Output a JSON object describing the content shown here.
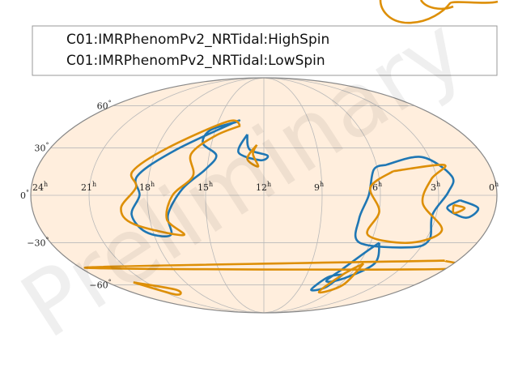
{
  "chart_data": {
    "type": "skymap-contour",
    "projection": "mollweide",
    "watermark": "Preliminary",
    "colors": {
      "background_fill": "#ffeedd",
      "grid": "#b9b9b9",
      "outline": "#888888",
      "series": [
        "#1f77b4",
        "#dd8f07"
      ]
    },
    "legend": {
      "placement": "top",
      "entries": [
        "C01:IMRPhenomPv2_NRTidal:HighSpin",
        "C01:IMRPhenomPv2_NRTidal:LowSpin"
      ]
    },
    "ra_ticks": [
      {
        "hour": 24,
        "label": "24",
        "unit": "h"
      },
      {
        "hour": 21,
        "label": "21",
        "unit": "h"
      },
      {
        "hour": 18,
        "label": "18",
        "unit": "h"
      },
      {
        "hour": 15,
        "label": "15",
        "unit": "h"
      },
      {
        "hour": 12,
        "label": "12",
        "unit": "h"
      },
      {
        "hour": 9,
        "label": "9",
        "unit": "h"
      },
      {
        "hour": 6,
        "label": "6",
        "unit": "h"
      },
      {
        "hour": 3,
        "label": "3",
        "unit": "h"
      },
      {
        "hour": 0,
        "label": "0",
        "unit": "h"
      }
    ],
    "dec_ticks": [
      {
        "deg": 60,
        "label": "60",
        "unit": "°"
      },
      {
        "deg": 30,
        "label": "30",
        "unit": "°"
      },
      {
        "deg": 0,
        "label": "0",
        "unit": "°"
      },
      {
        "deg": -30,
        "label": "−30",
        "unit": "°"
      },
      {
        "deg": -60,
        "label": "−60",
        "unit": "°"
      }
    ],
    "series": [
      {
        "name": "C01:IMRPhenomPv2_NRTidal:HighSpin",
        "contours": [
          [
            [
              13.7,
              48
            ],
            [
              15.3,
              42
            ],
            [
              15.5,
              33
            ],
            [
              14.6,
              25
            ],
            [
              15.1,
              16
            ],
            [
              16.2,
              4
            ],
            [
              17.0,
              -12
            ],
            [
              17.1,
              -25
            ],
            [
              18.4,
              -23
            ],
            [
              18.9,
              -12
            ],
            [
              18.4,
              0
            ],
            [
              18.6,
              12
            ],
            [
              17.0,
              28
            ],
            [
              14.0,
              47
            ],
            [
              13.7,
              48
            ]
          ],
          [
            [
              13.0,
              39
            ],
            [
              13.4,
              27
            ],
            [
              12.2,
              22
            ],
            [
              11.8,
              25
            ],
            [
              12.8,
              29
            ],
            [
              13.0,
              39
            ]
          ],
          [
            [
              5.5,
              19
            ],
            [
              6.2,
              16
            ],
            [
              6.6,
              0
            ],
            [
              7.0,
              -15
            ],
            [
              6.6,
              -30
            ],
            [
              3.6,
              -33
            ],
            [
              2.8,
              -28
            ],
            [
              3.2,
              -12
            ],
            [
              2.5,
              2
            ],
            [
              2.2,
              12
            ],
            [
              3.4,
              24
            ],
            [
              5.5,
              19
            ]
          ],
          [
            [
              1.9,
              -3
            ],
            [
              0.9,
              -8
            ],
            [
              1.4,
              -14
            ],
            [
              2.5,
              -8
            ],
            [
              1.9,
              -3
            ]
          ],
          [
            [
              5.5,
              -30
            ],
            [
              6.0,
              -36
            ],
            [
              6.8,
              -48
            ],
            [
              7.3,
              -57
            ],
            [
              6.2,
              -55
            ],
            [
              5.0,
              -44
            ],
            [
              5.5,
              -30
            ]
          ],
          [
            [
              6.5,
              -52
            ],
            [
              6.9,
              -62
            ],
            [
              7.9,
              -64
            ],
            [
              7.4,
              -54
            ],
            [
              6.5,
              -52
            ]
          ]
        ]
      },
      {
        "name": "C01:IMRPhenomPv2_NRTidal:LowSpin",
        "contours": [
          [
            [
              13.5,
              45
            ],
            [
              14.9,
              38
            ],
            [
              16.0,
              26
            ],
            [
              15.7,
              12
            ],
            [
              16.7,
              0
            ],
            [
              17.1,
              -15
            ],
            [
              16.4,
              -25
            ],
            [
              18.9,
              -18
            ],
            [
              19.4,
              -8
            ],
            [
              18.6,
              5
            ],
            [
              18.9,
              15
            ],
            [
              17.4,
              30
            ],
            [
              14.4,
              48
            ],
            [
              13.5,
              45
            ]
          ],
          [
            [
              12.4,
              32
            ],
            [
              12.9,
              23
            ],
            [
              12.3,
              18
            ],
            [
              12.6,
              26
            ],
            [
              12.4,
              32
            ]
          ],
          [
            [
              5.2,
              15
            ],
            [
              6.5,
              5
            ],
            [
              6.0,
              -10
            ],
            [
              6.3,
              -25
            ],
            [
              3.8,
              -30
            ],
            [
              2.4,
              -22
            ],
            [
              3.8,
              -5
            ],
            [
              3.3,
              10
            ],
            [
              2.4,
              19
            ],
            [
              5.2,
              15
            ]
          ],
          [
            [
              2.2,
              -6
            ],
            [
              1.6,
              -8
            ],
            [
              2.1,
              -11
            ],
            [
              2.2,
              -6
            ]
          ],
          [
            [
              5.7,
              -44
            ],
            [
              6.5,
              -52
            ],
            [
              7.0,
              -66
            ],
            [
              5.7,
              -60
            ],
            [
              5.7,
              -44
            ]
          ],
          [
            [
              22.0,
              -58
            ],
            [
              20.5,
              -68
            ],
            [
              19.6,
              -64
            ],
            [
              22.0,
              -58
            ]
          ],
          [
            [
              0.8,
              -42
            ],
            [
              -0.3,
              -47
            ],
            [
              0.2,
              -48
            ],
            [
              0.8,
              -42
            ]
          ]
        ]
      }
    ]
  }
}
